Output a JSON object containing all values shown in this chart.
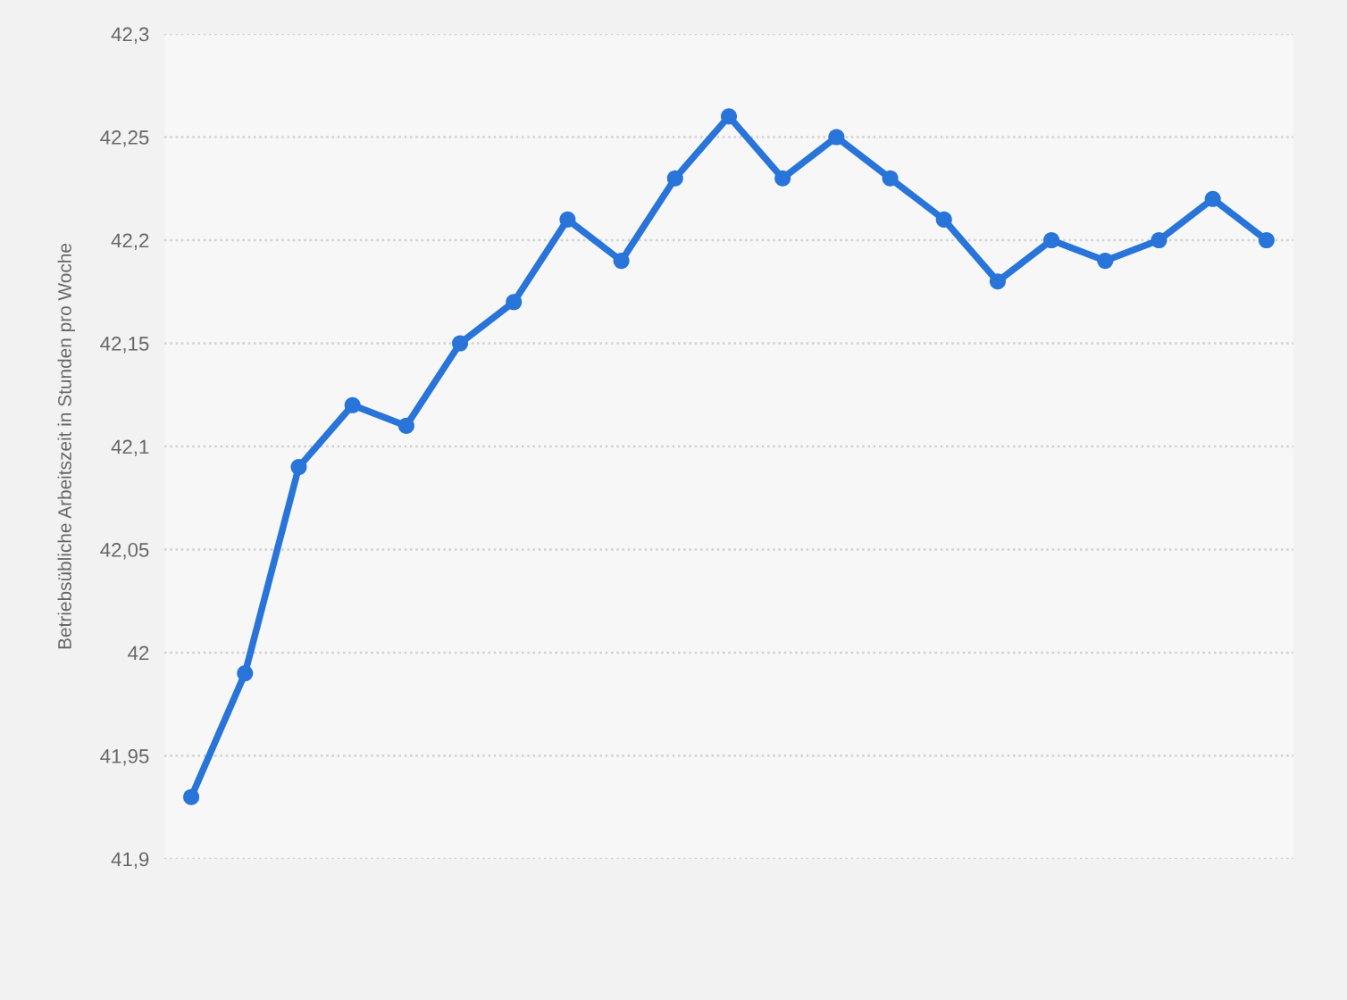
{
  "chart_data": {
    "type": "line",
    "ylabel": "Betriebsübliche Arbeitszeit in Stunden pro Woche",
    "categories": [
      null,
      null,
      null,
      null,
      null,
      null,
      null,
      null,
      null,
      null,
      null,
      null,
      null,
      null,
      null,
      null,
      null,
      null,
      null,
      null,
      null
    ],
    "series": [
      {
        "color": "#2874d9",
        "values": [
          41.93,
          41.99,
          42.09,
          42.12,
          42.11,
          42.15,
          42.17,
          42.21,
          42.19,
          42.23,
          42.26,
          42.23,
          42.25,
          42.23,
          42.21,
          42.18,
          42.2,
          42.19,
          42.2,
          42.22,
          42.2
        ]
      }
    ],
    "ylim": [
      41.9,
      42.3
    ],
    "yticks": [
      {
        "value": 41.9,
        "label": "41,9"
      },
      {
        "value": 41.95,
        "label": "41,95"
      },
      42,
      {
        "value": 42.05,
        "label": "42,05"
      },
      {
        "value": 42.1,
        "label": "42,1"
      },
      {
        "value": 42.15,
        "label": "42,15"
      },
      {
        "value": 42.2,
        "label": "42,2"
      },
      {
        "value": 42.25,
        "label": "42,25"
      },
      {
        "value": 42.3,
        "label": "42,3"
      }
    ],
    "grid": "y",
    "marker": "circle",
    "line_style": "solid",
    "tick_labels": "y"
  }
}
